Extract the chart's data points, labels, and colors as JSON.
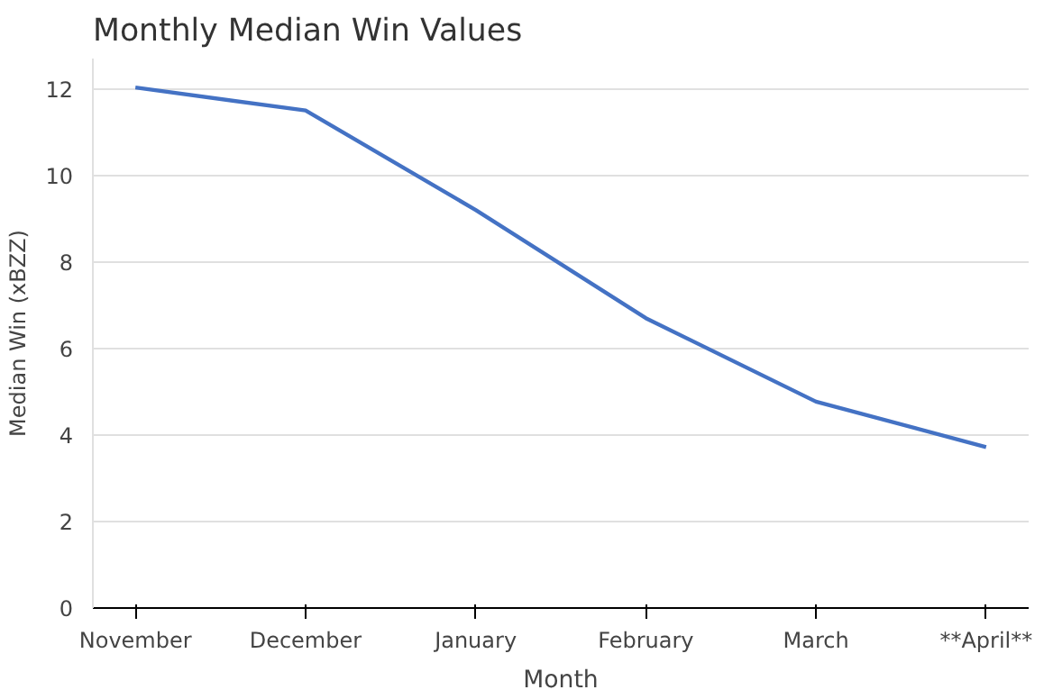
{
  "chart_data": {
    "type": "line",
    "title": "Monthly Median Win Values",
    "xlabel": "Month",
    "ylabel": "Median Win (xBZZ)",
    "categories": [
      "November",
      "December",
      "January",
      "February",
      "March",
      "**April**"
    ],
    "series": [
      {
        "color": "#4472c4",
        "values": [
          12.03,
          11.5,
          9.2,
          6.7,
          4.77,
          3.72
        ]
      }
    ],
    "ylim": [
      0,
      12.7
    ],
    "yticks": [
      0,
      2,
      4,
      6,
      8,
      10,
      12
    ],
    "grid": "y",
    "marker": "none",
    "line_style": "solid"
  }
}
